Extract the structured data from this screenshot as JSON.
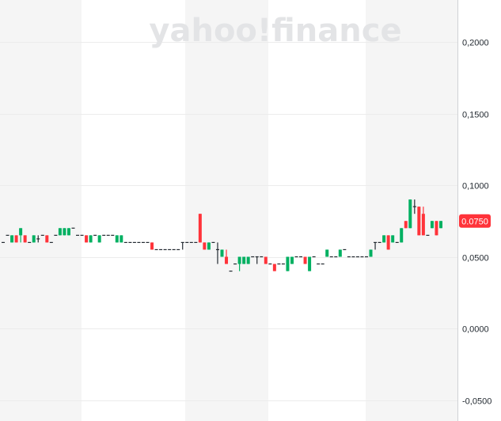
{
  "watermark": "yahoo!finance",
  "chart_data": {
    "type": "candlestick",
    "title": "",
    "ylim": [
      -0.055,
      0.235
    ],
    "y_ticks": [
      "0,2000",
      "0,1500",
      "0,1000",
      "0,0500",
      "0,0000",
      "-0,0500"
    ],
    "y_tick_values": [
      0.2,
      0.15,
      0.1,
      0.05,
      0.0,
      -0.05
    ],
    "grid": true,
    "axis_position": "right",
    "current_price": 0.075,
    "current_price_label": "0.0750",
    "colors": {
      "up": "#00b061",
      "down": "#ff333a",
      "doji": "#232a31",
      "band": "#f5f5f5",
      "grid": "#ececec"
    },
    "candles_ohlc": [
      [
        0.06,
        0.06,
        0.06,
        0.06
      ],
      [
        0.065,
        0.065,
        0.065,
        0.065
      ],
      [
        0.06,
        0.065,
        0.06,
        0.065
      ],
      [
        0.065,
        0.065,
        0.06,
        0.06
      ],
      [
        0.065,
        0.07,
        0.06,
        0.07
      ],
      [
        0.065,
        0.065,
        0.06,
        0.06
      ],
      [
        0.06,
        0.06,
        0.06,
        0.06
      ],
      [
        0.06,
        0.065,
        0.06,
        0.065
      ],
      [
        0.0625,
        0.065,
        0.06,
        0.0625
      ],
      [
        0.065,
        0.065,
        0.065,
        0.065
      ],
      [
        0.065,
        0.065,
        0.06,
        0.06
      ],
      [
        0.06,
        0.06,
        0.06,
        0.06
      ],
      [
        0.065,
        0.065,
        0.065,
        0.065
      ],
      [
        0.065,
        0.07,
        0.065,
        0.07
      ],
      [
        0.065,
        0.07,
        0.065,
        0.07
      ],
      [
        0.065,
        0.07,
        0.065,
        0.07
      ],
      [
        0.07,
        0.07,
        0.07,
        0.07
      ],
      [
        0.065,
        0.065,
        0.065,
        0.065
      ],
      [
        0.065,
        0.065,
        0.065,
        0.065
      ],
      [
        0.065,
        0.065,
        0.06,
        0.06
      ],
      [
        0.06,
        0.065,
        0.06,
        0.065
      ],
      [
        0.065,
        0.065,
        0.065,
        0.065
      ],
      [
        0.06,
        0.065,
        0.06,
        0.065
      ],
      [
        0.065,
        0.065,
        0.065,
        0.065
      ],
      [
        0.065,
        0.065,
        0.065,
        0.065
      ],
      [
        0.065,
        0.065,
        0.065,
        0.065
      ],
      [
        0.06,
        0.065,
        0.06,
        0.065
      ],
      [
        0.06,
        0.065,
        0.06,
        0.065
      ],
      [
        0.06,
        0.06,
        0.06,
        0.06
      ],
      [
        0.06,
        0.06,
        0.06,
        0.06
      ],
      [
        0.06,
        0.06,
        0.06,
        0.06
      ],
      [
        0.06,
        0.06,
        0.06,
        0.06
      ],
      [
        0.06,
        0.06,
        0.06,
        0.06
      ],
      [
        0.06,
        0.06,
        0.06,
        0.06
      ],
      [
        0.06,
        0.06,
        0.055,
        0.055
      ],
      [
        0.055,
        0.055,
        0.055,
        0.055
      ],
      [
        0.055,
        0.055,
        0.055,
        0.055
      ],
      [
        0.055,
        0.055,
        0.055,
        0.055
      ],
      [
        0.055,
        0.055,
        0.055,
        0.055
      ],
      [
        0.055,
        0.055,
        0.055,
        0.055
      ],
      [
        0.055,
        0.055,
        0.055,
        0.055
      ],
      [
        0.06,
        0.06,
        0.055,
        0.06
      ],
      [
        0.06,
        0.06,
        0.06,
        0.06
      ],
      [
        0.06,
        0.06,
        0.06,
        0.06
      ],
      [
        0.06,
        0.06,
        0.06,
        0.06
      ],
      [
        0.08,
        0.08,
        0.06,
        0.06
      ],
      [
        0.06,
        0.06,
        0.055,
        0.055
      ],
      [
        0.055,
        0.06,
        0.055,
        0.06
      ],
      [
        0.06,
        0.06,
        0.06,
        0.06
      ],
      [
        0.055,
        0.06,
        0.045,
        0.055
      ],
      [
        0.05,
        0.055,
        0.05,
        0.055
      ],
      [
        0.05,
        0.055,
        0.045,
        0.045
      ],
      [
        0.04,
        0.04,
        0.04,
        0.04
      ],
      [
        0.045,
        0.045,
        0.045,
        0.045
      ],
      [
        0.045,
        0.05,
        0.04,
        0.05
      ],
      [
        0.045,
        0.05,
        0.045,
        0.05
      ],
      [
        0.045,
        0.05,
        0.045,
        0.05
      ],
      [
        0.05,
        0.05,
        0.05,
        0.05
      ],
      [
        0.05,
        0.05,
        0.045,
        0.05
      ],
      [
        0.05,
        0.05,
        0.05,
        0.05
      ],
      [
        0.05,
        0.05,
        0.045,
        0.045
      ],
      [
        0.045,
        0.045,
        0.045,
        0.045
      ],
      [
        0.045,
        0.045,
        0.04,
        0.04
      ],
      [
        0.045,
        0.045,
        0.045,
        0.045
      ],
      [
        0.045,
        0.045,
        0.045,
        0.045
      ],
      [
        0.04,
        0.05,
        0.04,
        0.05
      ],
      [
        0.045,
        0.05,
        0.045,
        0.05
      ],
      [
        0.05,
        0.05,
        0.05,
        0.05
      ],
      [
        0.05,
        0.05,
        0.05,
        0.05
      ],
      [
        0.05,
        0.05,
        0.045,
        0.045
      ],
      [
        0.04,
        0.05,
        0.04,
        0.05
      ],
      [
        0.05,
        0.05,
        0.05,
        0.05
      ],
      [
        0.045,
        0.045,
        0.045,
        0.045
      ],
      [
        0.045,
        0.045,
        0.045,
        0.045
      ],
      [
        0.05,
        0.055,
        0.05,
        0.055
      ],
      [
        0.05,
        0.05,
        0.05,
        0.05
      ],
      [
        0.05,
        0.05,
        0.05,
        0.05
      ],
      [
        0.05,
        0.055,
        0.05,
        0.055
      ],
      [
        0.055,
        0.055,
        0.055,
        0.055
      ],
      [
        0.05,
        0.05,
        0.05,
        0.05
      ],
      [
        0.05,
        0.05,
        0.05,
        0.05
      ],
      [
        0.05,
        0.05,
        0.05,
        0.05
      ],
      [
        0.05,
        0.05,
        0.05,
        0.05
      ],
      [
        0.05,
        0.05,
        0.05,
        0.05
      ],
      [
        0.05,
        0.055,
        0.05,
        0.055
      ],
      [
        0.06,
        0.06,
        0.055,
        0.06
      ],
      [
        0.06,
        0.06,
        0.06,
        0.06
      ],
      [
        0.06,
        0.065,
        0.06,
        0.065
      ],
      [
        0.065,
        0.065,
        0.055,
        0.055
      ],
      [
        0.06,
        0.065,
        0.06,
        0.065
      ],
      [
        0.06,
        0.06,
        0.06,
        0.06
      ],
      [
        0.06,
        0.07,
        0.06,
        0.07
      ],
      [
        0.075,
        0.075,
        0.07,
        0.07
      ],
      [
        0.07,
        0.09,
        0.07,
        0.09
      ],
      [
        0.085,
        0.09,
        0.08,
        0.085
      ],
      [
        0.085,
        0.085,
        0.065,
        0.065
      ],
      [
        0.08,
        0.085,
        0.065,
        0.065
      ],
      [
        0.065,
        0.065,
        0.065,
        0.065
      ],
      [
        0.07,
        0.075,
        0.07,
        0.075
      ],
      [
        0.075,
        0.075,
        0.065,
        0.065
      ],
      [
        0.07,
        0.075,
        0.07,
        0.075
      ]
    ]
  }
}
